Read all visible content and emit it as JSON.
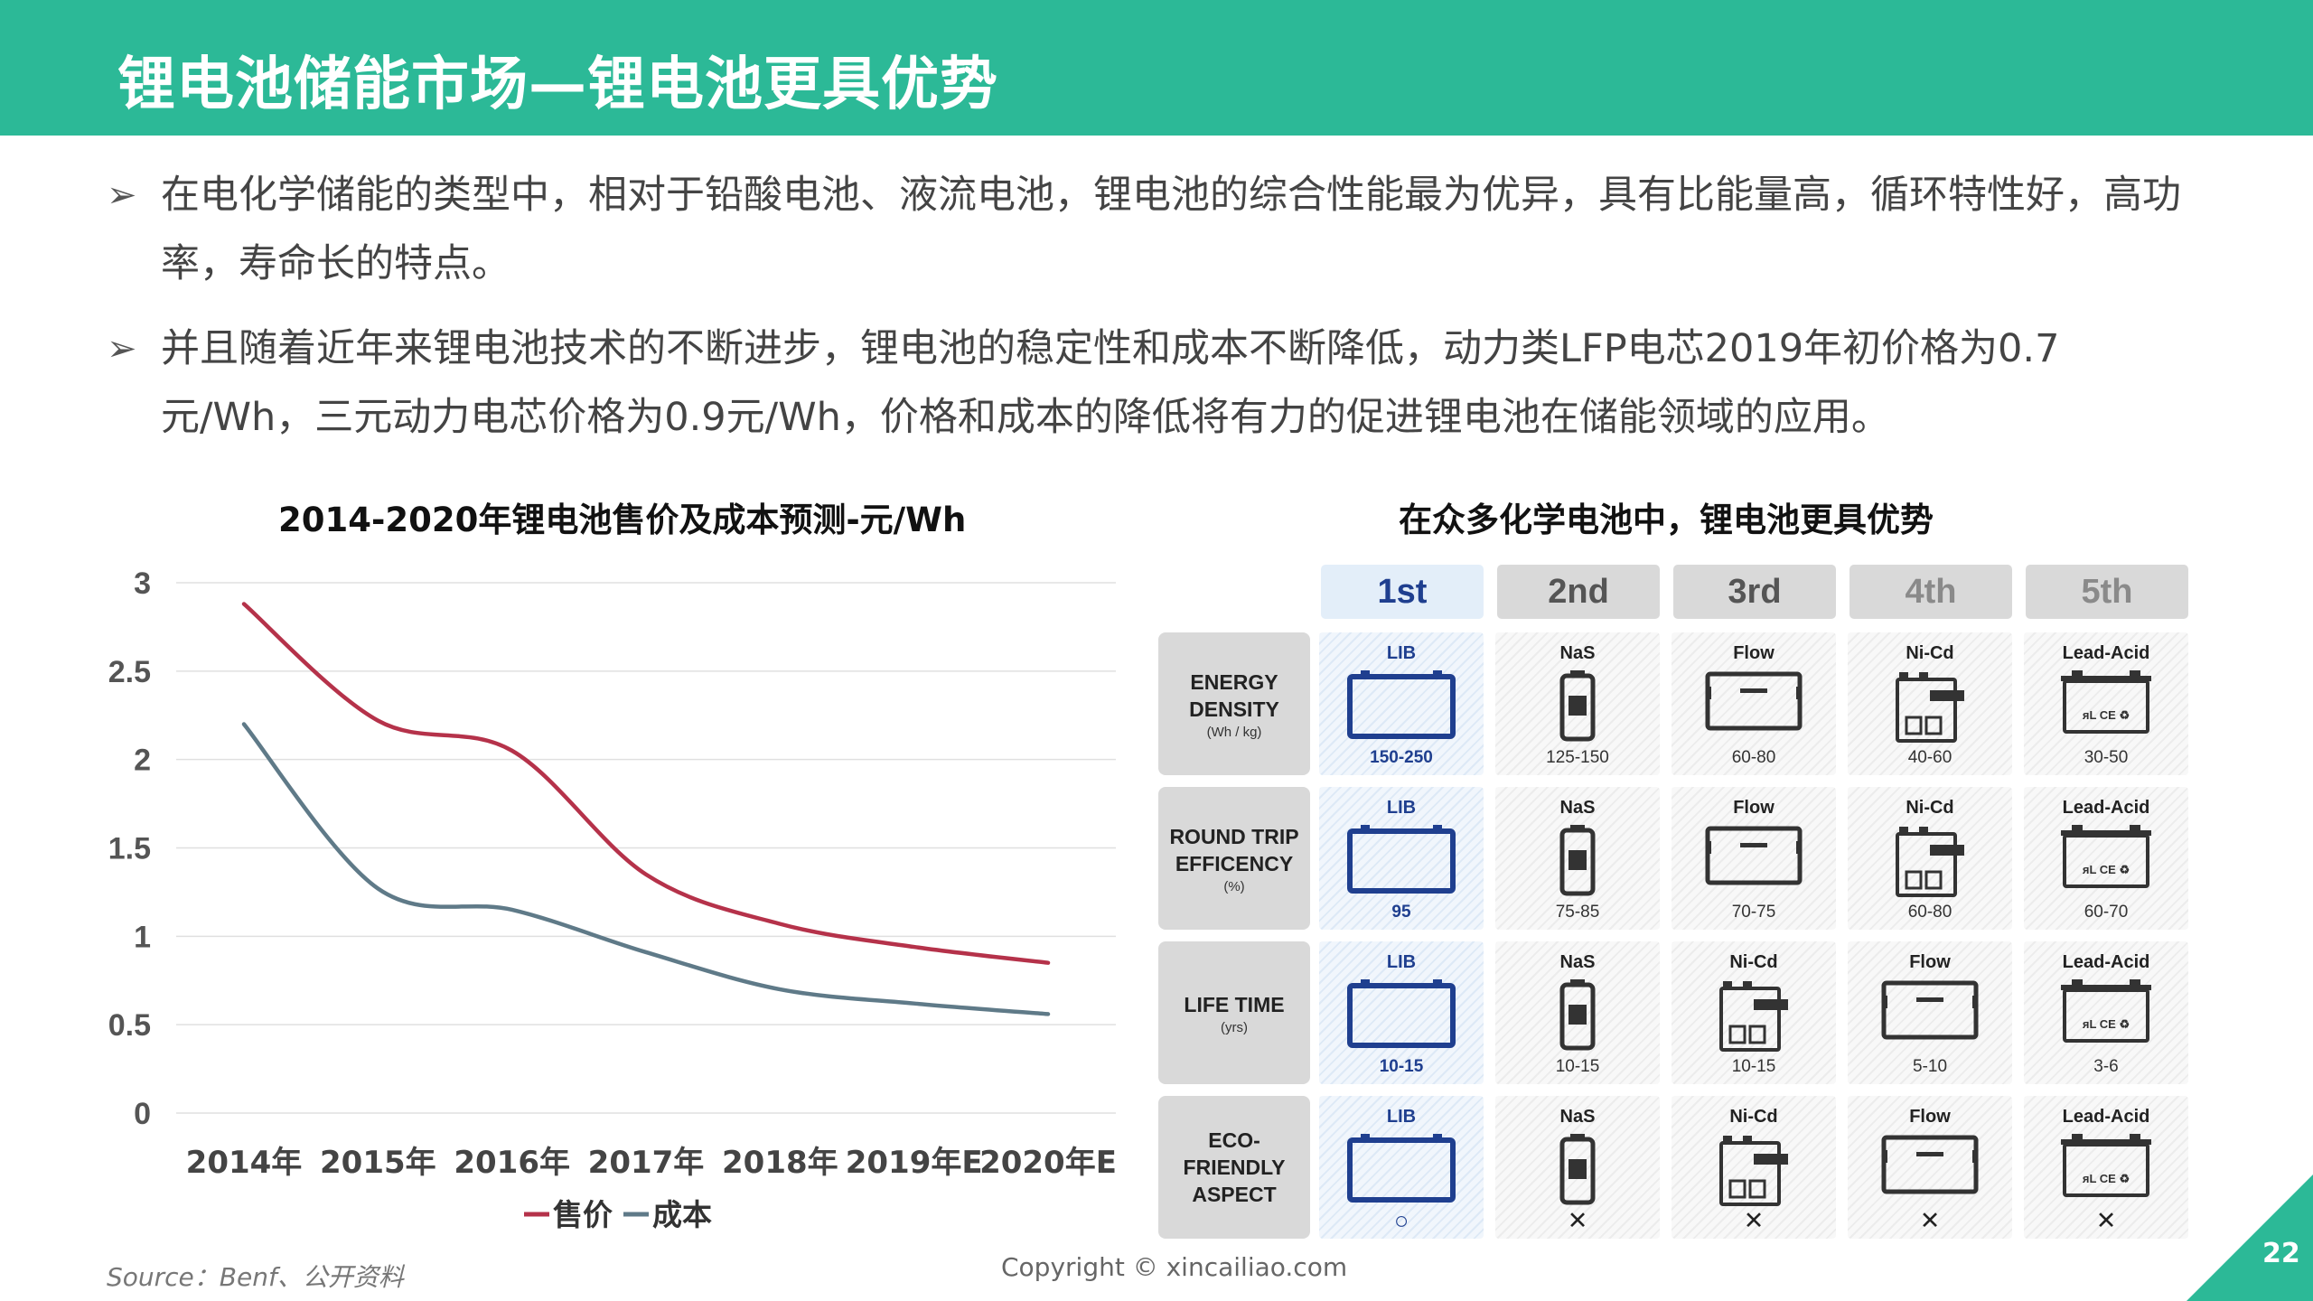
{
  "header": {
    "title": "锂电池储能市场—锂电池更具优势"
  },
  "bullets": [
    "在电化学储能的类型中，相对于铅酸电池、液流电池，锂电池的综合性能最为优异，具有比能量高，循环特性好，高功率，寿命长的特点。",
    "并且随着近年来锂电池技术的不断进步，锂电池的稳定性和成本不断降低，动力类LFP电芯2019年初价格为0.7元/Wh，三元动力电芯价格为0.9元/Wh，价格和成本的降低将有力的促进锂电池在储能领域的应用。"
  ],
  "bullet_marker": "➢",
  "left_chart": {
    "title": "2014-2020年锂电池售价及成本预测-元/Wh"
  },
  "chart_data": {
    "type": "line",
    "title": "2014-2020年锂电池售价及成本预测-元/Wh",
    "categories": [
      "2014年",
      "2015年",
      "2016年",
      "2017年",
      "2018年",
      "2019年E",
      "2020年E"
    ],
    "series": [
      {
        "name": "售价",
        "color": "#b5324a",
        "values": [
          2.88,
          2.22,
          2.05,
          1.35,
          1.07,
          0.94,
          0.85
        ]
      },
      {
        "name": "成本",
        "color": "#5f7a88",
        "values": [
          2.2,
          1.27,
          1.15,
          0.91,
          0.7,
          0.62,
          0.56
        ]
      }
    ],
    "yticks": [
      "0",
      "0.5",
      "1",
      "1.5",
      "2",
      "2.5",
      "3"
    ],
    "ylim": [
      0,
      3
    ],
    "grid": true,
    "legend_position": "bottom"
  },
  "right_panel": {
    "title": "在众多化学电池中，锂电池更具优势",
    "ranks": [
      "1st",
      "2nd",
      "3rd",
      "4th",
      "5th"
    ],
    "rows": [
      {
        "label": "ENERGY DENSITY",
        "unit": "(Wh / kg)",
        "cells": [
          {
            "name": "LIB",
            "icon": "lib-battery-icon",
            "value": "150-250"
          },
          {
            "name": "NaS",
            "icon": "nas-battery-icon",
            "value": "125-150"
          },
          {
            "name": "Flow",
            "icon": "flow-battery-icon",
            "value": "60-80"
          },
          {
            "name": "Ni-Cd",
            "icon": "nicd-battery-icon",
            "value": "40-60"
          },
          {
            "name": "Lead-Acid",
            "icon": "lead-acid-battery-icon",
            "value": "30-50"
          }
        ]
      },
      {
        "label": "ROUND TRIP EFFICENCY",
        "unit": "(%)",
        "cells": [
          {
            "name": "LIB",
            "icon": "lib-battery-icon",
            "value": "95"
          },
          {
            "name": "NaS",
            "icon": "nas-battery-icon",
            "value": "75-85"
          },
          {
            "name": "Flow",
            "icon": "flow-battery-icon",
            "value": "70-75"
          },
          {
            "name": "Ni-Cd",
            "icon": "nicd-battery-icon",
            "value": "60-80"
          },
          {
            "name": "Lead-Acid",
            "icon": "lead-acid-battery-icon",
            "value": "60-70"
          }
        ]
      },
      {
        "label": "LIFE TIME",
        "unit": "(yrs)",
        "cells": [
          {
            "name": "LIB",
            "icon": "lib-battery-icon",
            "value": "10-15"
          },
          {
            "name": "NaS",
            "icon": "nas-battery-icon",
            "value": "10-15"
          },
          {
            "name": "Ni-Cd",
            "icon": "nicd-battery-icon",
            "value": "10-15"
          },
          {
            "name": "Flow",
            "icon": "flow-battery-icon",
            "value": "5-10"
          },
          {
            "name": "Lead-Acid",
            "icon": "lead-acid-battery-icon",
            "value": "3-6"
          }
        ]
      },
      {
        "label": "ECO-FRIENDLY ASPECT",
        "unit": "",
        "cells": [
          {
            "name": "LIB",
            "icon": "lib-battery-icon",
            "mark": "○"
          },
          {
            "name": "NaS",
            "icon": "nas-battery-icon",
            "mark": "✕"
          },
          {
            "name": "Ni-Cd",
            "icon": "nicd-battery-icon",
            "mark": "✕"
          },
          {
            "name": "Flow",
            "icon": "flow-battery-icon",
            "mark": "✕"
          },
          {
            "name": "Lead-Acid",
            "icon": "lead-acid-battery-icon",
            "mark": "✕"
          }
        ]
      }
    ]
  },
  "lead_acid_label": "ᴙL CE ♻",
  "footer": {
    "source": "Source：Benf、公开资料",
    "copyright": "Copyright © xincailiao.com",
    "page_number": "22"
  },
  "colors": {
    "accent": "#2cb997",
    "price": "#b5324a",
    "cost": "#5f7a88",
    "lib_blue": "#1f3f8f"
  }
}
